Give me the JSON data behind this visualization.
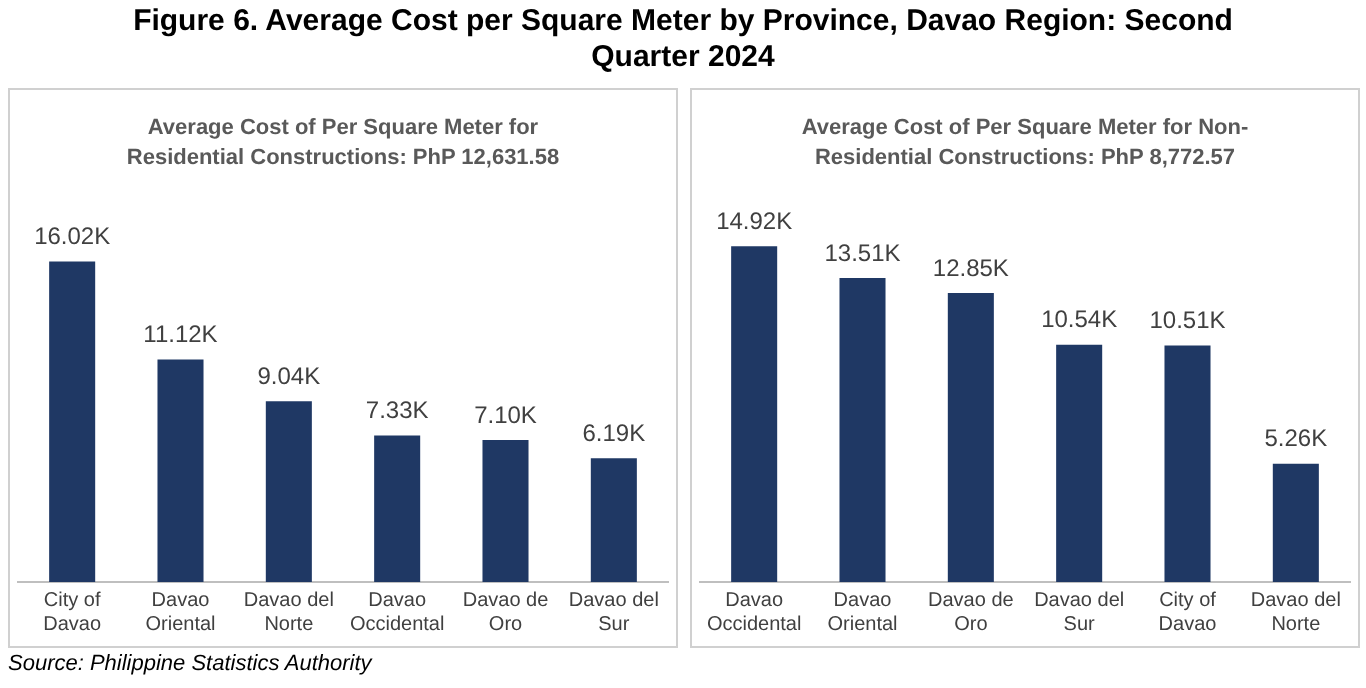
{
  "chart_data": [
    {
      "type": "bar",
      "title": "Figure 6. Average Cost per Square Meter by Province, Davao Region: Second Quarter 2024",
      "subtitle": "Average Cost of Per Square Meter for Residential Constructions: PhP 12,631.58",
      "categories": [
        "City of Davao",
        "Davao Oriental",
        "Davao del Norte",
        "Davao Occidental",
        "Davao de Oro",
        "Davao del Sur"
      ],
      "values": [
        16020,
        11120,
        9040,
        7330,
        7100,
        6190
      ],
      "color": "#1f3864",
      "value_labels": [
        "16.02K",
        "11.12K",
        "9.04K",
        "7.33K",
        "7.10K",
        "6.19K"
      ],
      "annotations": [
        "Source: Philippine Statistics Authority"
      ]
    },
    {
      "type": "bar",
      "subtitle": "Average Cost of Per Square Meter for Non-Residential Constructions: PhP 8,772.57",
      "categories": [
        "Davao Occidental",
        "Davao Oriental",
        "Davao de Oro",
        "Davao del Sur",
        "City of Davao",
        "Davao del Norte"
      ],
      "values": [
        14920,
        13510,
        12850,
        10540,
        10510,
        5260
      ],
      "color": "#1f3864",
      "value_labels": [
        "14.92K",
        "13.51K",
        "12.85K",
        "10.54K",
        "10.51K",
        "5.26K"
      ]
    }
  ]
}
